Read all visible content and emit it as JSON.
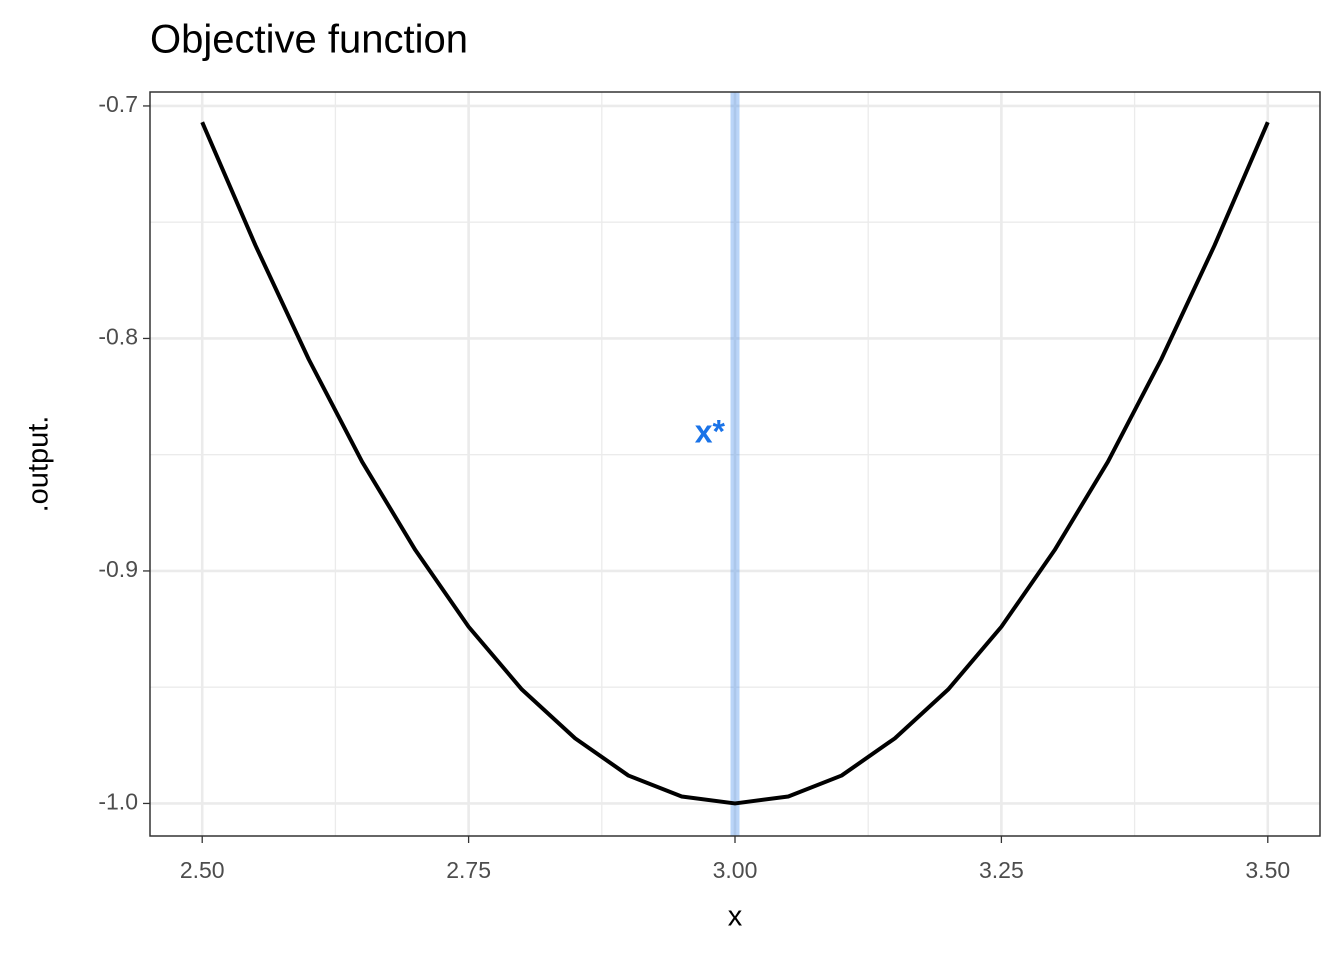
{
  "chart_data": {
    "type": "line",
    "title": "Objective function",
    "x_label": "x",
    "y_label": ".output.",
    "x": [
      2.5,
      2.55,
      2.6,
      2.65,
      2.7,
      2.75,
      2.8,
      2.85,
      2.9,
      2.95,
      3.0,
      3.05,
      3.1,
      3.15,
      3.2,
      3.25,
      3.3,
      3.35,
      3.4,
      3.45,
      3.5
    ],
    "values": [
      -0.707,
      -0.76,
      -0.809,
      -0.853,
      -0.891,
      -0.924,
      -0.951,
      -0.972,
      -0.988,
      -0.997,
      -1.0,
      -0.997,
      -0.988,
      -0.972,
      -0.951,
      -0.924,
      -0.891,
      -0.853,
      -0.809,
      -0.76,
      -0.707
    ],
    "color": "#000000",
    "vline": {
      "x": 3.0,
      "label": "x*",
      "color": "#1a73e8"
    },
    "xlim": [
      2.451,
      3.549
    ],
    "ylim": [
      -1.014,
      -0.694
    ],
    "xticks": [
      {
        "value": 2.5,
        "label": "2.50"
      },
      {
        "value": 2.75,
        "label": "2.75"
      },
      {
        "value": 3.0,
        "label": "3.00"
      },
      {
        "value": 3.25,
        "label": "3.25"
      },
      {
        "value": 3.5,
        "label": "3.50"
      }
    ],
    "yticks": [
      -0.7,
      -0.8,
      -0.9,
      {
        "value": -1.0,
        "label": "-1.0"
      }
    ],
    "grid": true
  }
}
